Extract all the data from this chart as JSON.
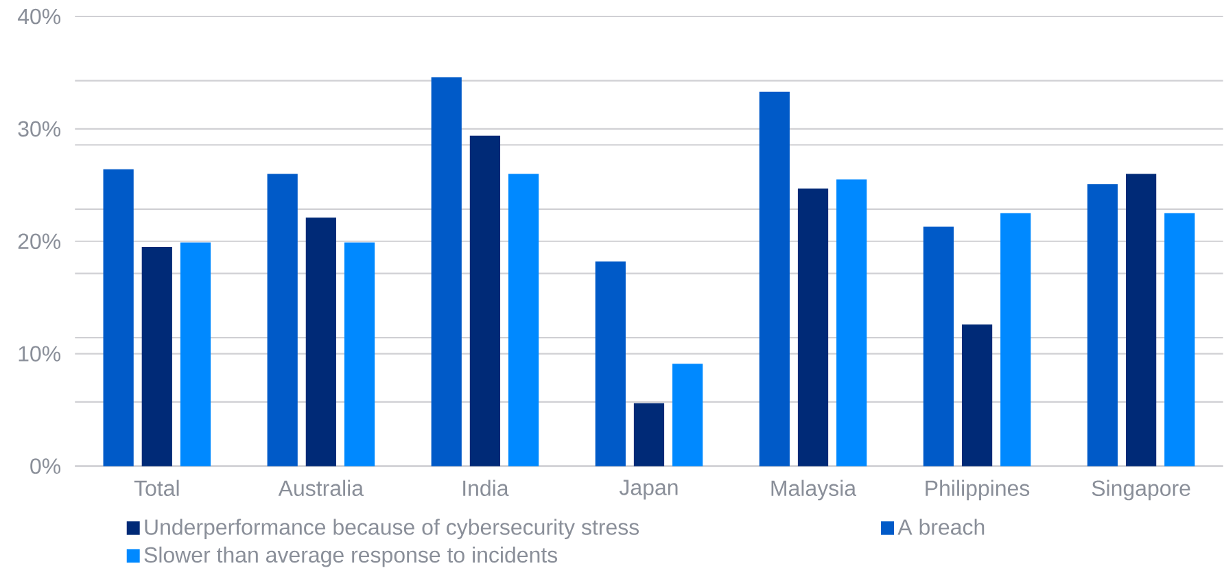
{
  "chart_data": {
    "type": "bar",
    "categories": [
      "Total",
      "Australia",
      "India",
      "Japan",
      "Malaysia",
      "Philippines",
      "Singapore"
    ],
    "series": [
      {
        "name": "A breach",
        "color": "#005ac8",
        "values": [
          26.4,
          26.0,
          34.6,
          18.2,
          33.3,
          21.3,
          25.1
        ]
      },
      {
        "name": "Underperformance because of cybersecurity stress",
        "color": "#002a77",
        "values": [
          19.5,
          22.1,
          29.4,
          5.6,
          24.7,
          12.6,
          26.0
        ]
      },
      {
        "name": "Slower than average response to incidents",
        "color": "#0089ff",
        "values": [
          19.9,
          19.9,
          26.0,
          9.1,
          25.5,
          22.5,
          22.5
        ]
      }
    ],
    "ylim": [
      0,
      40
    ],
    "yticks": [
      {
        "value": 0,
        "label": "0%"
      },
      {
        "value": 5.71,
        "label": null
      },
      {
        "value": 10,
        "label": "10%"
      },
      {
        "value": 11.43,
        "label": null
      },
      {
        "value": 17.14,
        "label": null
      },
      {
        "value": 20,
        "label": "20%"
      },
      {
        "value": 22.86,
        "label": null
      },
      {
        "value": 28.57,
        "label": null
      },
      {
        "value": 30,
        "label": "30%"
      },
      {
        "value": 34.29,
        "label": null
      },
      {
        "value": 40,
        "label": "40%"
      }
    ],
    "grid": "y",
    "legend": "bottom"
  }
}
